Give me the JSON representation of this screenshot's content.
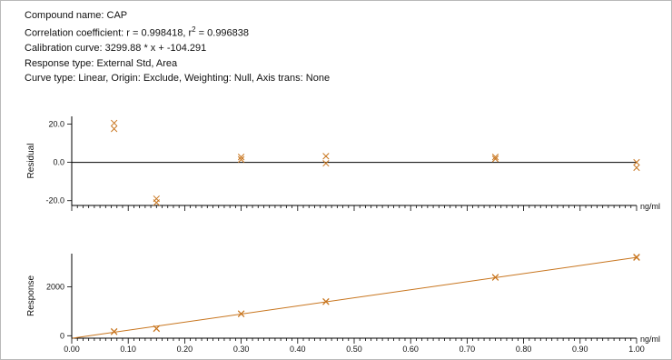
{
  "info": {
    "compound": "Compound name: CAP",
    "correlation_prefix": "Correlation coefficient: r = 0.998418, r",
    "correlation_sup": "2",
    "correlation_suffix": " = 0.996838",
    "calibration": "Calibration curve: 3299.88 * x + -104.291",
    "response_type": "Response type: External Std, Area",
    "curve_type": "Curve type: Linear, Origin: Exclude, Weighting: Null, Axis trans: None"
  },
  "colors": {
    "marker": "#c8751e",
    "fit_line": "#c8751e",
    "axis": "#000000"
  },
  "chart_data": [
    {
      "type": "scatter",
      "ylabel": "Residual",
      "xunit": "ng/ml",
      "xlim": [
        0.0,
        1.0
      ],
      "ylim": [
        -22.5,
        24.0
      ],
      "yticks": [
        20.0,
        0.0,
        -20.0
      ],
      "ytick_labels": [
        "20.0",
        "0.0",
        "-20.0"
      ],
      "zero_line": true,
      "points": [
        {
          "x": 0.075,
          "y": 20.5
        },
        {
          "x": 0.075,
          "y": 17.5
        },
        {
          "x": 0.15,
          "y": -19.0
        },
        {
          "x": 0.15,
          "y": -21.0
        },
        {
          "x": 0.3,
          "y": 2.8
        },
        {
          "x": 0.3,
          "y": 1.5
        },
        {
          "x": 0.45,
          "y": 3.2
        },
        {
          "x": 0.45,
          "y": -0.5
        },
        {
          "x": 0.75,
          "y": 2.8
        },
        {
          "x": 0.75,
          "y": 1.8
        },
        {
          "x": 1.0,
          "y": 0.0
        },
        {
          "x": 1.0,
          "y": -2.8
        }
      ]
    },
    {
      "type": "line",
      "ylabel": "Response",
      "xunit": "ng/ml",
      "xlim": [
        0.0,
        1.0
      ],
      "ylim": [
        -100,
        3350
      ],
      "yticks": [
        0,
        2000
      ],
      "ytick_labels": [
        "0",
        "2000"
      ],
      "xticks": [
        0.0,
        0.1,
        0.2,
        0.3,
        0.4,
        0.5,
        0.6,
        0.7,
        0.8,
        0.9,
        1.0
      ],
      "xtick_labels": [
        "0.00",
        "0.10",
        "0.20",
        "0.30",
        "0.40",
        "0.50",
        "0.60",
        "0.70",
        "0.80",
        "0.90",
        "1.00"
      ],
      "fit": {
        "slope": 3299.88,
        "intercept": -104.291
      },
      "points": [
        {
          "x": 0.075,
          "y": 160
        },
        {
          "x": 0.075,
          "y": 175
        },
        {
          "x": 0.15,
          "y": 285
        },
        {
          "x": 0.15,
          "y": 300
        },
        {
          "x": 0.3,
          "y": 890
        },
        {
          "x": 0.3,
          "y": 900
        },
        {
          "x": 0.45,
          "y": 1385
        },
        {
          "x": 0.45,
          "y": 1400
        },
        {
          "x": 0.75,
          "y": 2375
        },
        {
          "x": 0.75,
          "y": 2390
        },
        {
          "x": 1.0,
          "y": 3190
        },
        {
          "x": 1.0,
          "y": 3215
        }
      ]
    }
  ]
}
